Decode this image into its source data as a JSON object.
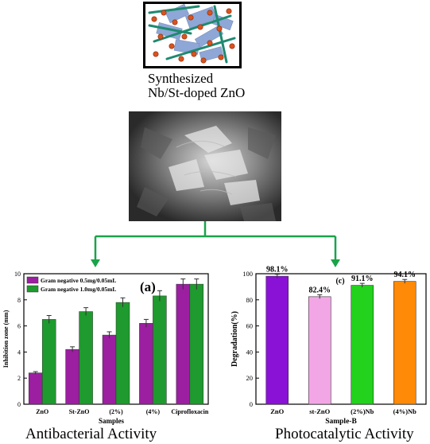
{
  "schematic": {
    "caption_line1": "Synthesized",
    "caption_line2": "Nb/St-doped ZnO"
  },
  "sem_image": {
    "description_icon": "sem-micrograph-image"
  },
  "arrows": {
    "color": "#1aa34a"
  },
  "captions": {
    "left": "Antibacterial Activity",
    "right": "Photocatalytic Activity"
  },
  "chart_data": [
    {
      "type": "bar",
      "panel_label": "(a)",
      "xlabel": "Samples",
      "ylabel": "Inhibition zone (mm)",
      "ylim": [
        0,
        10
      ],
      "yticks": [
        0,
        2,
        4,
        6,
        8,
        10
      ],
      "categories": [
        "ZnO",
        "St-ZnO",
        "(2%)",
        "(4%)",
        "Ciprofloxacin"
      ],
      "series": [
        {
          "name": "Gram negative 0.5mg/0.05mL",
          "color": "#9b1fa0",
          "values": [
            2.4,
            4.2,
            5.3,
            6.2,
            9.2
          ],
          "errors": [
            0.1,
            0.2,
            0.25,
            0.3,
            0.4
          ]
        },
        {
          "name": "Gram negative 1.0mg/0.05mL",
          "color": "#1f9a2e",
          "values": [
            6.5,
            7.1,
            7.8,
            8.3,
            9.2
          ],
          "errors": [
            0.3,
            0.3,
            0.35,
            0.4,
            0.4
          ]
        }
      ],
      "legend_position": "top-left"
    },
    {
      "type": "bar",
      "panel_label": "(c)",
      "xlabel": "Sample-B",
      "ylabel": "Degradation(%)",
      "ylim": [
        0,
        100
      ],
      "yticks": [
        0,
        20,
        40,
        60,
        80,
        100
      ],
      "categories": [
        "ZnO",
        "st-ZnO",
        "(2%)Nb",
        "(4%)Nb"
      ],
      "values": [
        98.1,
        82.4,
        91.1,
        94.1
      ],
      "errors": [
        1.5,
        1.5,
        1.5,
        1.5
      ],
      "data_labels": [
        "98.1%",
        "82.4%",
        "91.1%",
        "94.1%"
      ],
      "colors": [
        "#8a12d6",
        "#f3a6e6",
        "#22d21c",
        "#ff8a08"
      ]
    }
  ]
}
